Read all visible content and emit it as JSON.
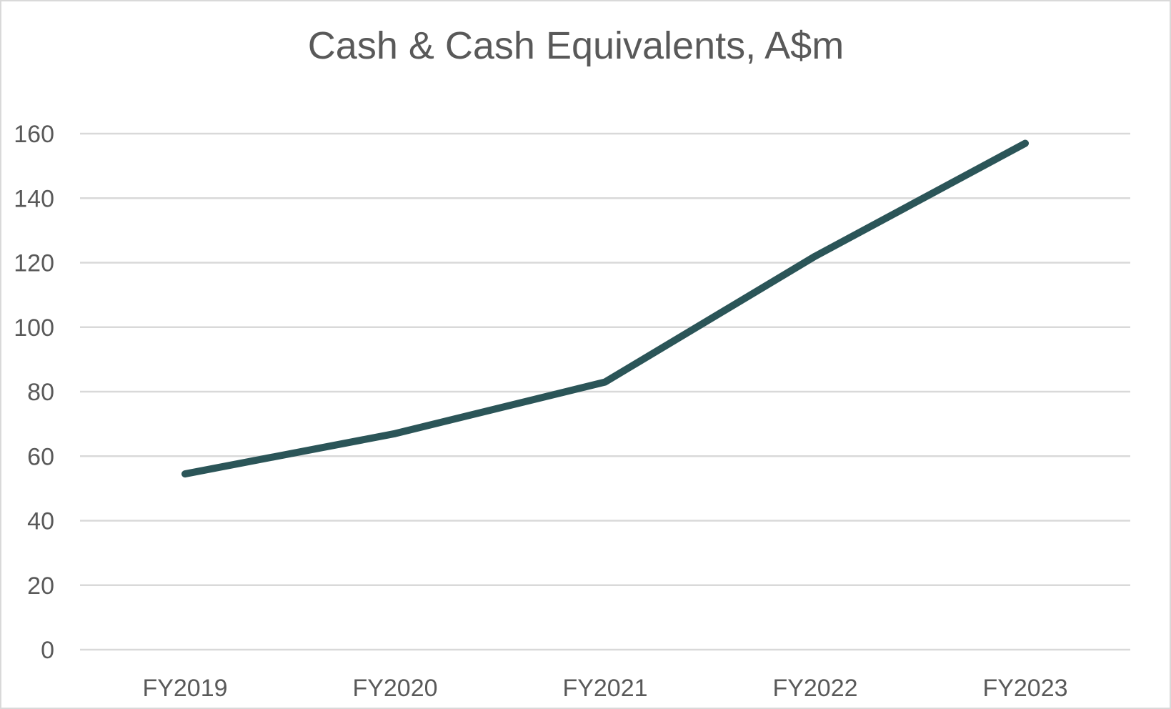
{
  "chart_data": {
    "type": "line",
    "title": "Cash & Cash Equivalents, A$m",
    "xlabel": "",
    "ylabel": "",
    "categories": [
      "FY2019",
      "FY2020",
      "FY2021",
      "FY2022",
      "FY2023"
    ],
    "series": [
      {
        "values": [
          54.5,
          67,
          83,
          122,
          157
        ]
      }
    ],
    "ylim": [
      0,
      160
    ],
    "yticks": [
      "0",
      "20",
      "40",
      "60",
      "80",
      "100",
      "120",
      "140",
      "160"
    ],
    "grid": true,
    "legend": "none",
    "colors": {
      "series": "#2b5558",
      "grid": "#d9d9d9",
      "text": "#595959"
    }
  }
}
